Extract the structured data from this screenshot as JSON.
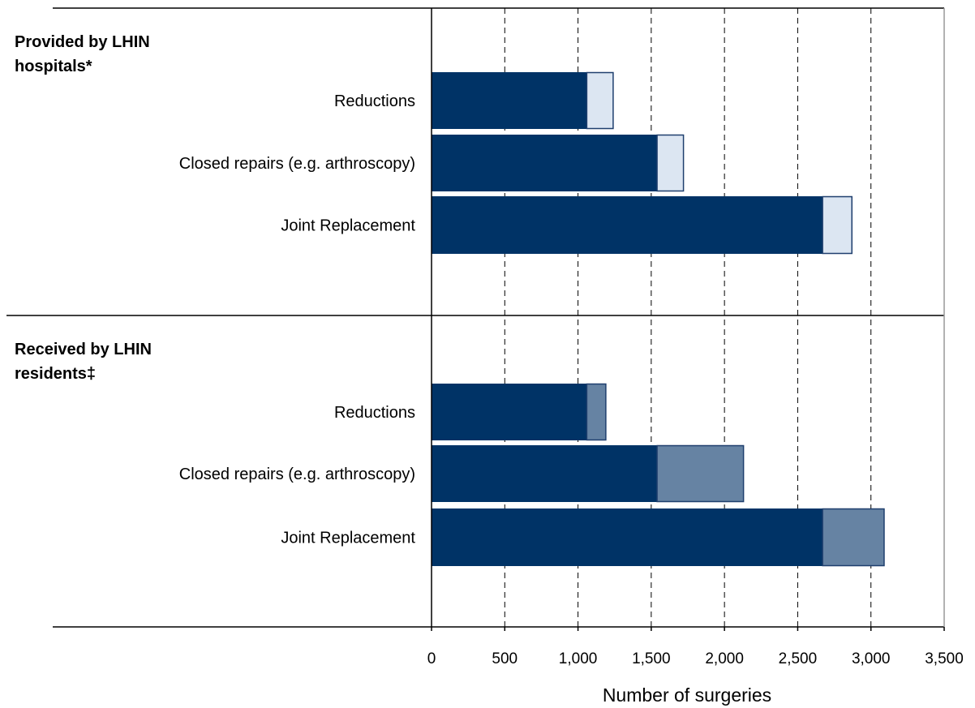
{
  "chart_data": {
    "type": "bar",
    "orientation": "horizontal",
    "stacked": true,
    "xlabel": "Number of surgeries",
    "xlim": [
      0,
      3500
    ],
    "xticks": [
      0,
      500,
      1000,
      1500,
      2000,
      2500,
      3000,
      3500
    ],
    "xtick_labels": [
      "0",
      "500",
      "1,000",
      "1,500",
      "2,000",
      "2,500",
      "3,000",
      "3,500"
    ],
    "grid": "vertical-dashed",
    "colors": {
      "base": "#003366",
      "provided_extra": "#dce6f2",
      "received_extra": "#6683a3",
      "outline": "#1f3f6e"
    },
    "groups": [
      {
        "label_lines": [
          "Provided by LHIN",
          "hospitals*"
        ],
        "extra_color_key": "provided_extra",
        "bars": [
          {
            "label": "Reductions",
            "base": 1060,
            "extra": 180
          },
          {
            "label": "Closed repairs (e.g. arthroscopy)",
            "base": 1540,
            "extra": 180
          },
          {
            "label": "Joint Replacement",
            "base": 2670,
            "extra": 200
          }
        ]
      },
      {
        "label_lines": [
          "Received by LHIN",
          "residents‡"
        ],
        "extra_color_key": "received_extra",
        "bars": [
          {
            "label": "Reductions",
            "base": 1060,
            "extra": 130
          },
          {
            "label": "Closed repairs (e.g. arthroscopy)",
            "base": 1540,
            "extra": 590
          },
          {
            "label": "Joint Replacement",
            "base": 2670,
            "extra": 420
          }
        ]
      }
    ]
  }
}
